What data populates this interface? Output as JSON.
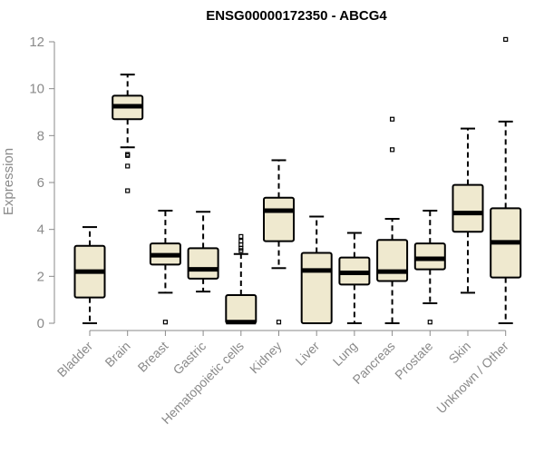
{
  "chart_data": {
    "type": "boxplot",
    "title": "ENSG00000172350 - ABCG4",
    "ylabel": "Expression",
    "xlabel": "",
    "ylim": [
      0,
      12
    ],
    "yticks": [
      0,
      2,
      4,
      6,
      8,
      10,
      12
    ],
    "grid": false,
    "box_color": "#efe9cf",
    "categories": [
      "Bladder",
      "Brain",
      "Breast",
      "Gastric",
      "Hematopoietic cells",
      "Kidney",
      "Liver",
      "Lung",
      "Pancreas",
      "Prostate",
      "Skin",
      "Unknown / Other"
    ],
    "boxes": [
      {
        "min": 0.0,
        "q1": 1.1,
        "median": 2.2,
        "q3": 3.3,
        "max": 4.1,
        "outliers": []
      },
      {
        "min": 7.5,
        "q1": 8.7,
        "median": 9.25,
        "q3": 9.7,
        "max": 10.6,
        "outliers": [
          7.2,
          7.15,
          6.7,
          5.65
        ]
      },
      {
        "min": 1.3,
        "q1": 2.5,
        "median": 2.9,
        "q3": 3.4,
        "max": 4.8,
        "outliers": [
          0.05
        ]
      },
      {
        "min": 1.35,
        "q1": 1.9,
        "median": 2.3,
        "q3": 3.2,
        "max": 4.75,
        "outliers": []
      },
      {
        "min": 0.0,
        "q1": 0.0,
        "median": 0.05,
        "q3": 1.2,
        "max": 2.95,
        "outliers": [
          3.1,
          3.2,
          3.35,
          3.5,
          3.7
        ]
      },
      {
        "min": 2.35,
        "q1": 3.5,
        "median": 4.8,
        "q3": 5.35,
        "max": 6.95,
        "outliers": [
          0.05
        ]
      },
      {
        "min": 0.0,
        "q1": 0.0,
        "median": 2.25,
        "q3": 3.0,
        "max": 4.55,
        "outliers": []
      },
      {
        "min": 0.0,
        "q1": 1.65,
        "median": 2.15,
        "q3": 2.8,
        "max": 3.85,
        "outliers": []
      },
      {
        "min": 0.0,
        "q1": 1.8,
        "median": 2.2,
        "q3": 3.55,
        "max": 4.45,
        "outliers": [
          7.4,
          8.7
        ]
      },
      {
        "min": 0.85,
        "q1": 2.3,
        "median": 2.75,
        "q3": 3.4,
        "max": 4.8,
        "outliers": [
          0.05
        ]
      },
      {
        "min": 1.3,
        "q1": 3.9,
        "median": 4.7,
        "q3": 5.9,
        "max": 8.3,
        "outliers": []
      },
      {
        "min": 0.0,
        "q1": 1.95,
        "median": 3.45,
        "q3": 4.9,
        "max": 8.6,
        "outliers": [
          12.1
        ]
      }
    ]
  }
}
